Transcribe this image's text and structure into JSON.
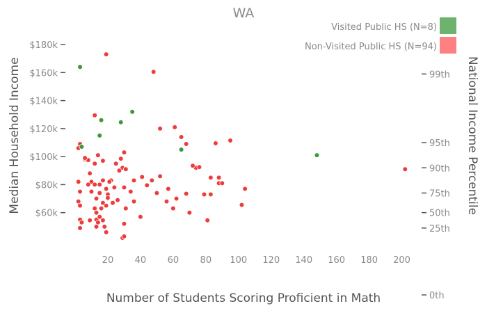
{
  "chart_data": {
    "type": "scatter",
    "title": "WA",
    "xlabel": "Number of Students Scoring Proficient in Math",
    "ylabel": "Median Household Income",
    "y2label": "National Income Percentile",
    "xlim": [
      0,
      207
    ],
    "ylim": [
      38000,
      182000
    ],
    "x_ticks": [
      20,
      40,
      60,
      80,
      100,
      120,
      140,
      160,
      180,
      200
    ],
    "y_ticks": [
      {
        "value": 60000,
        "label": "$60k"
      },
      {
        "value": 80000,
        "label": "$80k"
      },
      {
        "value": 100000,
        "label": "$100k"
      },
      {
        "value": 120000,
        "label": "$120k"
      },
      {
        "value": 140000,
        "label": "$140k"
      },
      {
        "value": 160000,
        "label": "$160k"
      },
      {
        "value": 180000,
        "label": "$180k"
      }
    ],
    "y2_ticks": [
      {
        "value": 159000,
        "label": "99th"
      },
      {
        "value": 110000,
        "label": "95th"
      },
      {
        "value": 92000,
        "label": "90th"
      },
      {
        "value": 74000,
        "label": "75th"
      },
      {
        "value": 60000,
        "label": "50th"
      },
      {
        "value": 49000,
        "label": "25th"
      },
      {
        "value": 0,
        "label": "0th"
      }
    ],
    "series": [
      {
        "name": "Visited Public HS (N=8)",
        "color": "#3a9a3a",
        "points": [
          [
            3,
            164000
          ],
          [
            16,
            126000
          ],
          [
            35,
            132000
          ],
          [
            28,
            124500
          ],
          [
            15,
            115000
          ],
          [
            65,
            105000
          ],
          [
            148,
            101000
          ],
          [
            4,
            107000
          ]
        ]
      },
      {
        "name": "Non-Visited Public HS (N=94)",
        "color": "#ee3b3b",
        "points": [
          [
            19,
            173000
          ],
          [
            48,
            160500
          ],
          [
            12,
            129500
          ],
          [
            52,
            120000
          ],
          [
            61,
            121000
          ],
          [
            65,
            114000
          ],
          [
            68,
            109000
          ],
          [
            86,
            109500
          ],
          [
            95,
            111500
          ],
          [
            3,
            109000
          ],
          [
            2,
            106000
          ],
          [
            30,
            103000
          ],
          [
            14,
            101000
          ],
          [
            28,
            98500
          ],
          [
            6,
            98000
          ],
          [
            8,
            97500
          ],
          [
            17,
            97000
          ],
          [
            12,
            95000
          ],
          [
            29,
            92000
          ],
          [
            31,
            91000
          ],
          [
            74,
            92000
          ],
          [
            72,
            93500
          ],
          [
            76,
            92500
          ],
          [
            202,
            91000
          ],
          [
            41,
            85500
          ],
          [
            52,
            86000
          ],
          [
            83,
            85000
          ],
          [
            88,
            85000
          ],
          [
            17,
            83000
          ],
          [
            22,
            83000
          ],
          [
            36,
            83000
          ],
          [
            21,
            82000
          ],
          [
            10,
            82000
          ],
          [
            2,
            82000
          ],
          [
            8,
            80000
          ],
          [
            12,
            80000
          ],
          [
            15,
            80000
          ],
          [
            44,
            79500
          ],
          [
            30,
            78000
          ],
          [
            19,
            77000
          ],
          [
            88,
            81000
          ],
          [
            90,
            81000
          ],
          [
            104,
            77000
          ],
          [
            3,
            75000
          ],
          [
            10,
            75000
          ],
          [
            15,
            74000
          ],
          [
            20,
            73000
          ],
          [
            50,
            74000
          ],
          [
            68,
            73500
          ],
          [
            79,
            73000
          ],
          [
            83,
            73000
          ],
          [
            2,
            68000
          ],
          [
            13,
            70000
          ],
          [
            20,
            70000
          ],
          [
            26,
            69000
          ],
          [
            36,
            68000
          ],
          [
            56,
            68000
          ],
          [
            62,
            70000
          ],
          [
            3,
            65000
          ],
          [
            17,
            67000
          ],
          [
            19,
            65000
          ],
          [
            16,
            63000
          ],
          [
            12,
            63000
          ],
          [
            31,
            63000
          ],
          [
            60,
            63000
          ],
          [
            102,
            65500
          ],
          [
            13,
            60000
          ],
          [
            70,
            60000
          ],
          [
            3,
            55000
          ],
          [
            9,
            54500
          ],
          [
            13,
            55000
          ],
          [
            17,
            54500
          ],
          [
            14,
            53000
          ],
          [
            4,
            53000
          ],
          [
            30,
            52000
          ],
          [
            81,
            54500
          ],
          [
            3,
            49000
          ],
          [
            13,
            50000
          ],
          [
            18,
            50000
          ],
          [
            19,
            46000
          ],
          [
            29,
            42000
          ],
          [
            30,
            43000
          ],
          [
            6,
            99000
          ],
          [
            25,
            95000
          ],
          [
            20,
            70500
          ],
          [
            34,
            75000
          ],
          [
            27,
            90000
          ],
          [
            47,
            83000
          ],
          [
            57,
            77000
          ],
          [
            23,
            67000
          ],
          [
            40,
            57000
          ],
          [
            15,
            57000
          ],
          [
            24,
            78000
          ],
          [
            9,
            88000
          ]
        ]
      }
    ],
    "legend": "top-right",
    "grid": false
  }
}
